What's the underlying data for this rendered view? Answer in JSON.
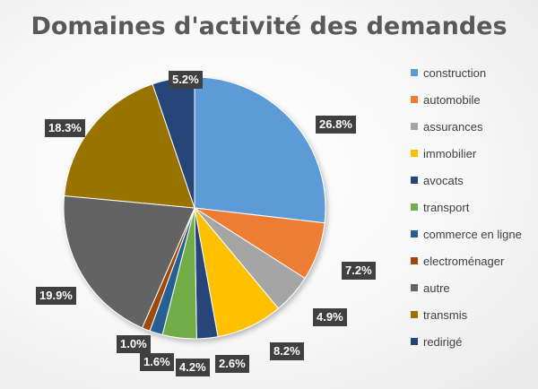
{
  "chart_data": {
    "type": "pie",
    "title": "Domaines d'activité des demandes",
    "legend_position": "right",
    "slices": [
      {
        "name": "construction",
        "value": 26.8,
        "label": "26.8%",
        "color": "#5B9BD5"
      },
      {
        "name": "automobile",
        "value": 7.2,
        "label": "7.2%",
        "color": "#ED7D31"
      },
      {
        "name": "assurances",
        "value": 4.9,
        "label": "4.9%",
        "color": "#A5A5A5"
      },
      {
        "name": "immobilier",
        "value": 8.2,
        "label": "8.2%",
        "color": "#FFC000"
      },
      {
        "name": "avocats",
        "value": 2.6,
        "label": "2.6%",
        "color": "#264478"
      },
      {
        "name": "transport",
        "value": 4.2,
        "label": "4.2%",
        "color": "#70AD47"
      },
      {
        "name": "commerce en ligne",
        "value": 1.6,
        "label": "1.6%",
        "color": "#255E91"
      },
      {
        "name": "electroménager",
        "value": 1.0,
        "label": "1.0%",
        "color": "#9E480E"
      },
      {
        "name": "autre",
        "value": 19.9,
        "label": "19.9%",
        "color": "#636363"
      },
      {
        "name": "transmis",
        "value": 18.3,
        "label": "18.3%",
        "color": "#997300"
      },
      {
        "name": "redirigé",
        "value": 5.2,
        "label": "5.2%",
        "color": "#264478"
      }
    ]
  }
}
